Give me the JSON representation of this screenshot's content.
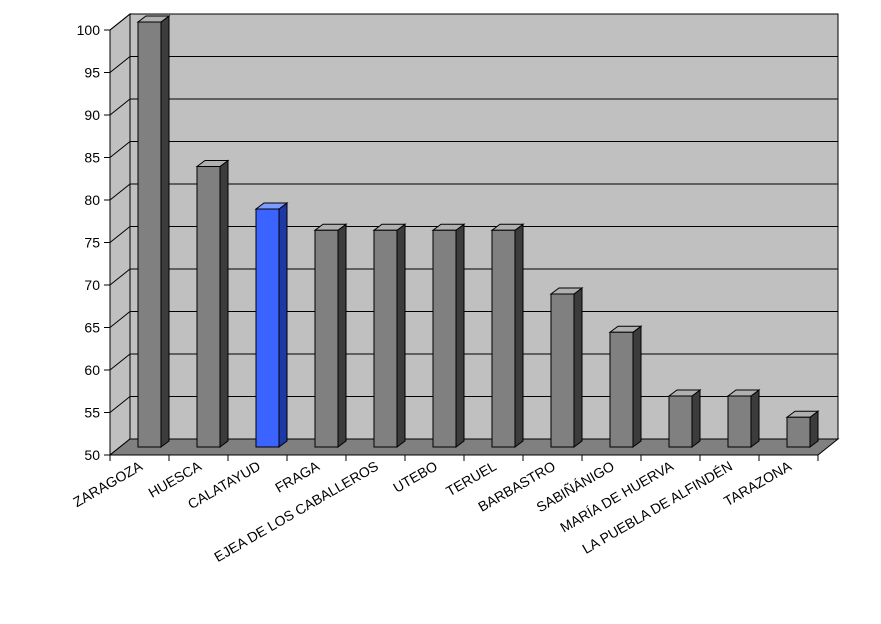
{
  "chart_data": {
    "type": "bar",
    "style": "3d-column",
    "categories": [
      "ZARAGOZA",
      "HUESCA",
      "CALATAYUD",
      "FRAGA",
      "EJEA DE LOS CABALLEROS",
      "UTEBO",
      "TERUEL",
      "BARBASTRO",
      "SABIÑÁNIGO",
      "MARÍA DE HUERVA",
      "LA PUEBLA DE ALFINDÉN",
      "TARAZONA"
    ],
    "values": [
      100,
      83,
      78,
      75.5,
      75.5,
      75.5,
      75.5,
      68,
      63.5,
      56,
      56,
      53.5
    ],
    "highlight_index": 2,
    "ylim": [
      50,
      100
    ],
    "yticks": [
      50,
      55,
      60,
      65,
      70,
      75,
      80,
      85,
      90,
      95,
      100
    ],
    "grid": true,
    "legend": false,
    "title": "",
    "xlabel": "",
    "ylabel": "",
    "colors": {
      "bar": "#808080",
      "bar_top": "#b0b0b0",
      "bar_side": "#3c3c3c",
      "highlight": "#3b63ff",
      "highlight_top": "#7f9bff",
      "highlight_side": "#1f38a8",
      "wall": "#c0c0c0",
      "floor": "#808080",
      "gridline": "#000000"
    }
  }
}
